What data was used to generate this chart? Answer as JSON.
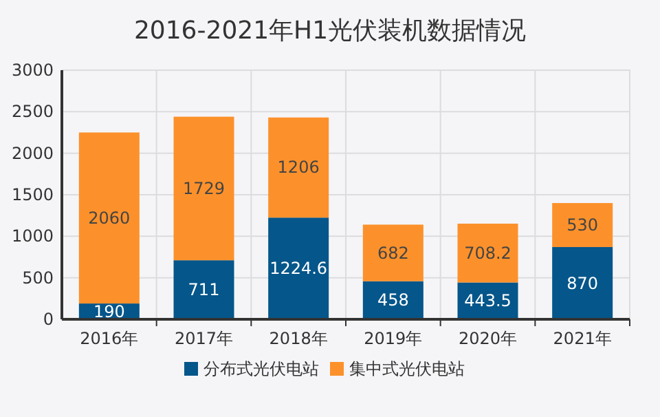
{
  "chart_data": {
    "type": "bar",
    "title": "2016-2021年H1光伏装机数据情况",
    "categories": [
      "2016年",
      "2017年",
      "2018年",
      "2019年",
      "2020年",
      "2021年"
    ],
    "stacked": true,
    "data_labels": true,
    "grid": true,
    "legend": "bottom",
    "ylim": [
      0,
      3000
    ],
    "yticks": [
      0,
      500,
      1000,
      1500,
      2000,
      2500,
      3000
    ],
    "series": [
      {
        "name": "分布式光伏电站",
        "color": "#05568a",
        "values": [
          190,
          711,
          1224.6,
          458,
          443.5,
          870
        ]
      },
      {
        "name": "集中式光伏电站",
        "color": "#fc912b",
        "values": [
          2060,
          1729,
          1206,
          682,
          708.2,
          530
        ]
      }
    ]
  }
}
